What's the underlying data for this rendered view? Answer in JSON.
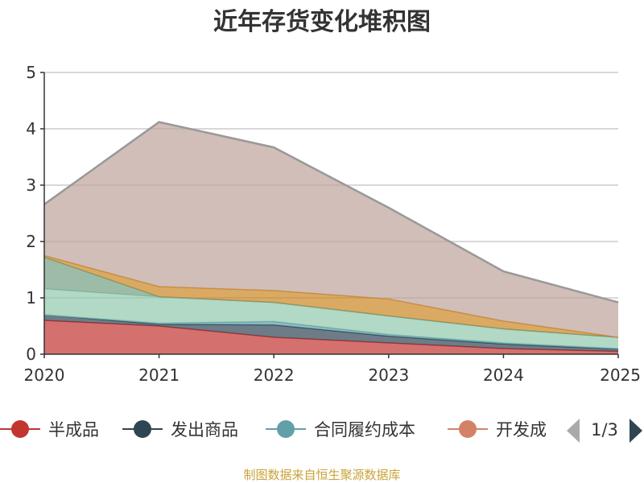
{
  "chart_data": {
    "type": "area",
    "stacked": true,
    "title": "近年存货变化堆积图",
    "ylabel": "",
    "xlabel": "",
    "x": [
      "2020",
      "2021",
      "2022",
      "2023",
      "2024",
      "2025"
    ],
    "ylim": [
      0,
      5
    ],
    "yticks": [
      "0",
      "1",
      "2",
      "3",
      "4",
      "5"
    ],
    "grid": true,
    "series": [
      {
        "name": "半成品",
        "color": "#c23531",
        "values": [
          0.6,
          0.5,
          0.3,
          0.2,
          0.1,
          0.05
        ]
      },
      {
        "name": "发出商品",
        "color": "#2f4554",
        "values": [
          0.1,
          0.03,
          0.22,
          0.12,
          0.08,
          0.04
        ]
      },
      {
        "name": "合同履约成本",
        "color": "#61a0a8",
        "values": [
          0.0,
          0.02,
          0.06,
          0.03,
          0.02,
          0.01
        ]
      },
      {
        "name": "",
        "color": "#91c7ae",
        "values": [
          0.46,
          0.47,
          0.34,
          0.33,
          0.25,
          0.2
        ]
      },
      {
        "name": "",
        "color": "#749f83",
        "values": [
          0.56,
          0.0,
          0.0,
          0.0,
          0.0,
          0.0
        ]
      },
      {
        "name": "",
        "color": "#ca8622",
        "values": [
          0.03,
          0.18,
          0.21,
          0.3,
          0.14,
          0.0
        ]
      },
      {
        "name": "",
        "color": "#bda29a",
        "values": [
          0.91,
          2.92,
          2.54,
          1.62,
          0.88,
          0.62
        ]
      }
    ]
  },
  "legend": {
    "items": [
      {
        "label": "半成品",
        "color": "#c23531"
      },
      {
        "label": "发出商品",
        "color": "#2f4554"
      },
      {
        "label": "合同履约成本",
        "color": "#61a0a8"
      },
      {
        "label": "开发成",
        "color": "#d48265"
      }
    ],
    "page_text": "1/3",
    "position": "bottom"
  },
  "source": "制图数据来自恒生聚源数据库",
  "colors": {
    "axis": "#333333",
    "grid": "#cccccc",
    "nav_disabled": "#aaaaaa",
    "nav_active": "#2f4554",
    "source": "#c9a338"
  }
}
